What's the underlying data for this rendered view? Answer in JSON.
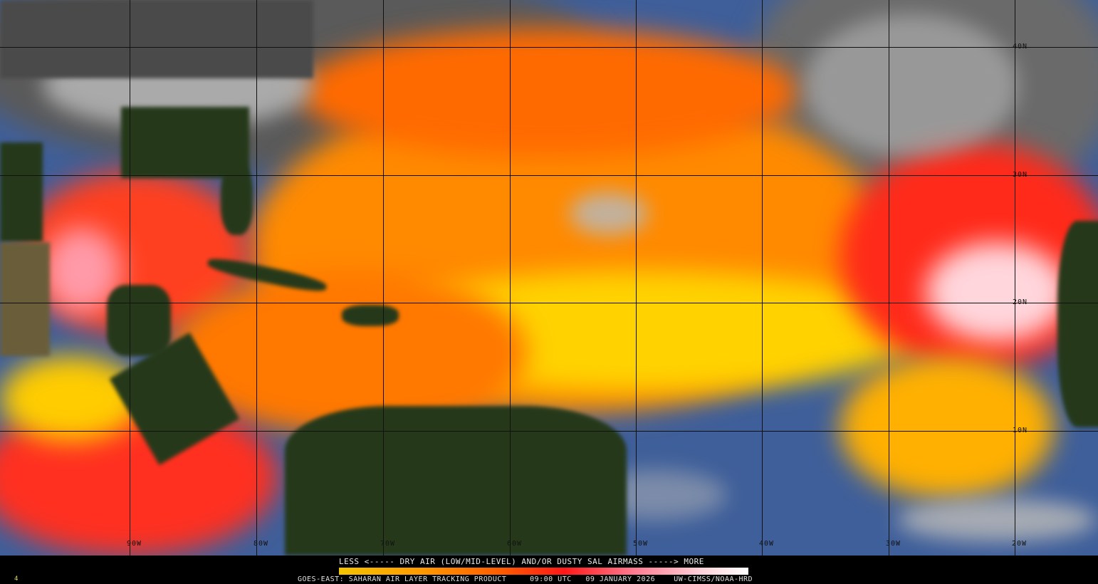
{
  "product": {
    "legend_label": "LESS <----- DRY AIR (LOW/MID-LEVEL) AND/OR DUSTY SAL AIRMASS -----> MORE",
    "satellite": "GOES-EAST:",
    "product_name": "SAHARAN AIR LAYER TRACKING PRODUCT",
    "time": "09:00 UTC",
    "date": "09 JANUARY 2026",
    "credit": "UW-CIMSS/NOAA-HRD",
    "frame_number": "4"
  },
  "colorscale": {
    "low_label": "LESS",
    "high_label": "MORE",
    "colors": [
      "#f5c400",
      "#ff9a00",
      "#ff5a00",
      "#ff1818",
      "#ff7a90",
      "#ffd0d8",
      "#ffffff"
    ]
  },
  "longitude_labels": [
    "90W",
    "80W",
    "70W",
    "60W",
    "50W",
    "40W",
    "30W",
    "20W"
  ],
  "latitude_labels": [
    "40N",
    "30N",
    "20N",
    "10N"
  ],
  "colors": {
    "ocean_clear": "#3f5f9a",
    "land": "#25391a",
    "clouds": "#b8b8b8"
  }
}
